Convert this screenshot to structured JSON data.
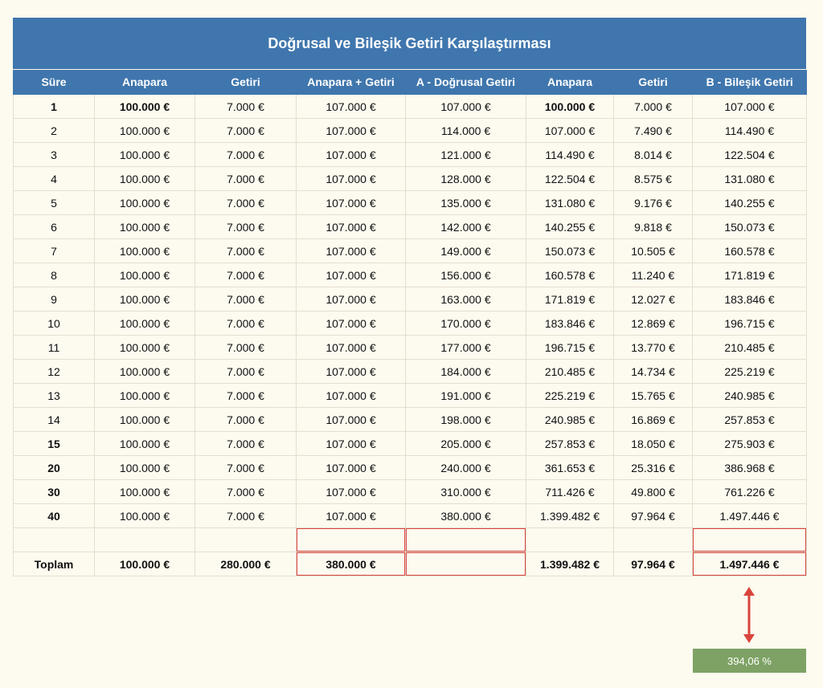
{
  "title": "Doğrusal ve Bileşik Getiri Karşılaştırması",
  "columns": [
    "Süre",
    "Anapara",
    "Getiri",
    "Anapara + Getiri",
    "A - Doğrusal Getiri",
    "Anapara",
    "Getiri",
    "B - Bileşik Getiri"
  ],
  "rows": [
    {
      "sure": "1",
      "anapara": "100.000 €",
      "getiri": "7.000 €",
      "ana_getiri": "107.000 €",
      "a_dogrusal": "107.000 €",
      "anapara_b": "100.000 €",
      "getiri_b": "7.000 €",
      "b_bilesik": "107.000 €"
    },
    {
      "sure": "2",
      "anapara": "100.000 €",
      "getiri": "7.000 €",
      "ana_getiri": "107.000 €",
      "a_dogrusal": "114.000 €",
      "anapara_b": "107.000 €",
      "getiri_b": "7.490 €",
      "b_bilesik": "114.490 €"
    },
    {
      "sure": "3",
      "anapara": "100.000 €",
      "getiri": "7.000 €",
      "ana_getiri": "107.000 €",
      "a_dogrusal": "121.000 €",
      "anapara_b": "114.490 €",
      "getiri_b": "8.014 €",
      "b_bilesik": "122.504 €"
    },
    {
      "sure": "4",
      "anapara": "100.000 €",
      "getiri": "7.000 €",
      "ana_getiri": "107.000 €",
      "a_dogrusal": "128.000 €",
      "anapara_b": "122.504 €",
      "getiri_b": "8.575 €",
      "b_bilesik": "131.080 €"
    },
    {
      "sure": "5",
      "anapara": "100.000 €",
      "getiri": "7.000 €",
      "ana_getiri": "107.000 €",
      "a_dogrusal": "135.000 €",
      "anapara_b": "131.080 €",
      "getiri_b": "9.176 €",
      "b_bilesik": "140.255 €"
    },
    {
      "sure": "6",
      "anapara": "100.000 €",
      "getiri": "7.000 €",
      "ana_getiri": "107.000 €",
      "a_dogrusal": "142.000 €",
      "anapara_b": "140.255 €",
      "getiri_b": "9.818 €",
      "b_bilesik": "150.073 €"
    },
    {
      "sure": "7",
      "anapara": "100.000 €",
      "getiri": "7.000 €",
      "ana_getiri": "107.000 €",
      "a_dogrusal": "149.000 €",
      "anapara_b": "150.073 €",
      "getiri_b": "10.505 €",
      "b_bilesik": "160.578 €"
    },
    {
      "sure": "8",
      "anapara": "100.000 €",
      "getiri": "7.000 €",
      "ana_getiri": "107.000 €",
      "a_dogrusal": "156.000 €",
      "anapara_b": "160.578 €",
      "getiri_b": "11.240 €",
      "b_bilesik": "171.819 €"
    },
    {
      "sure": "9",
      "anapara": "100.000 €",
      "getiri": "7.000 €",
      "ana_getiri": "107.000 €",
      "a_dogrusal": "163.000 €",
      "anapara_b": "171.819 €",
      "getiri_b": "12.027 €",
      "b_bilesik": "183.846 €"
    },
    {
      "sure": "10",
      "anapara": "100.000 €",
      "getiri": "7.000 €",
      "ana_getiri": "107.000 €",
      "a_dogrusal": "170.000 €",
      "anapara_b": "183.846 €",
      "getiri_b": "12.869 €",
      "b_bilesik": "196.715 €"
    },
    {
      "sure": "11",
      "anapara": "100.000 €",
      "getiri": "7.000 €",
      "ana_getiri": "107.000 €",
      "a_dogrusal": "177.000 €",
      "anapara_b": "196.715 €",
      "getiri_b": "13.770 €",
      "b_bilesik": "210.485 €"
    },
    {
      "sure": "12",
      "anapara": "100.000 €",
      "getiri": "7.000 €",
      "ana_getiri": "107.000 €",
      "a_dogrusal": "184.000 €",
      "anapara_b": "210.485 €",
      "getiri_b": "14.734 €",
      "b_bilesik": "225.219 €"
    },
    {
      "sure": "13",
      "anapara": "100.000 €",
      "getiri": "7.000 €",
      "ana_getiri": "107.000 €",
      "a_dogrusal": "191.000 €",
      "anapara_b": "225.219 €",
      "getiri_b": "15.765 €",
      "b_bilesik": "240.985 €"
    },
    {
      "sure": "14",
      "anapara": "100.000 €",
      "getiri": "7.000 €",
      "ana_getiri": "107.000 €",
      "a_dogrusal": "198.000 €",
      "anapara_b": "240.985 €",
      "getiri_b": "16.869 €",
      "b_bilesik": "257.853 €"
    },
    {
      "sure": "15",
      "anapara": "100.000 €",
      "getiri": "7.000 €",
      "ana_getiri": "107.000 €",
      "a_dogrusal": "205.000 €",
      "anapara_b": "257.853 €",
      "getiri_b": "18.050 €",
      "b_bilesik": "275.903 €"
    },
    {
      "sure": "20",
      "anapara": "100.000 €",
      "getiri": "7.000 €",
      "ana_getiri": "107.000 €",
      "a_dogrusal": "240.000 €",
      "anapara_b": "361.653 €",
      "getiri_b": "25.316 €",
      "b_bilesik": "386.968 €"
    },
    {
      "sure": "30",
      "anapara": "100.000 €",
      "getiri": "7.000 €",
      "ana_getiri": "107.000 €",
      "a_dogrusal": "310.000 €",
      "anapara_b": "711.426 €",
      "getiri_b": "49.800 €",
      "b_bilesik": "761.226 €"
    },
    {
      "sure": "40",
      "anapara": "100.000 €",
      "getiri": "7.000 €",
      "ana_getiri": "107.000 €",
      "a_dogrusal": "380.000 €",
      "anapara_b": "1.399.482 €",
      "getiri_b": "97.964 €",
      "b_bilesik": "1.497.446 €"
    }
  ],
  "total": {
    "label": "Toplam",
    "anapara": "100.000 €",
    "getiri": "280.000 €",
    "ana_getiri": "380.000 €",
    "a_dogrusal": "",
    "anapara_b": "1.399.482 €",
    "getiri_b": "97.964 €",
    "b_bilesik": "1.497.446 €"
  },
  "difference_percent": "394,06 %",
  "colors": {
    "header": "#3f76ad",
    "background": "#fdfaef",
    "highlight_border": "#d9443b",
    "arrow": "#d9443b",
    "percent_box": "#7ea265"
  },
  "icons": {
    "arrow": "double-arrow-vertical-icon"
  }
}
